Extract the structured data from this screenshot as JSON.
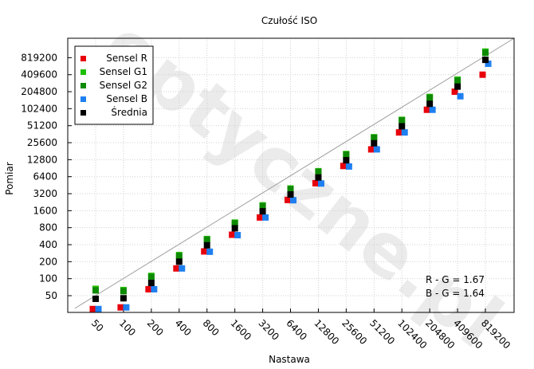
{
  "chart_data": {
    "type": "scatter",
    "title": "Czułość ISO",
    "xlabel": "Nastawa",
    "ylabel": "Pomiar",
    "scale": "log2",
    "grid": true,
    "legend_position": "top-left",
    "x_ticks": [
      "50",
      "100",
      "200",
      "400",
      "800",
      "1600",
      "3200",
      "6400",
      "12800",
      "25600",
      "51200",
      "102400",
      "204800",
      "409600",
      "819200"
    ],
    "y_ticks": [
      "50",
      "100",
      "200",
      "400",
      "800",
      "1600",
      "3200",
      "6400",
      "12800",
      "25600",
      "51200",
      "102400",
      "204800",
      "409600",
      "819200"
    ],
    "x": [
      50,
      100,
      200,
      400,
      800,
      1600,
      3200,
      6400,
      12800,
      25600,
      51200,
      102400,
      204800,
      409600,
      819200
    ],
    "series": [
      {
        "name": "Sensel R",
        "color": "#e8000b",
        "offset": -1,
        "values": [
          29,
          31,
          65,
          152,
          304,
          600,
          1213,
          2480,
          4900,
          9900,
          19500,
          38900,
          98000,
          204800,
          409600
        ]
      },
      {
        "name": "Sensel G1",
        "color": "#1fbe00",
        "offset": 0,
        "values": [
          66,
          63,
          112,
          262,
          504,
          985,
          1985,
          3950,
          8000,
          16100,
          32000,
          65000,
          165000,
          335000,
          1050000
        ]
      },
      {
        "name": "Sensel G2",
        "color": "#0e8a00",
        "offset": 0,
        "values": [
          62,
          60,
          107,
          252,
          490,
          955,
          1930,
          3850,
          7800,
          15700,
          31200,
          63500,
          160000,
          320000,
          1000000
        ]
      },
      {
        "name": "Sensel B",
        "color": "#1e7ff0",
        "offset": 1,
        "values": [
          29,
          31,
          65,
          152,
          300,
          590,
          1213,
          2450,
          4850,
          9700,
          19500,
          38900,
          98000,
          170000,
          640000
        ]
      },
      {
        "name": "Średnia",
        "color": "#000000",
        "offset": 0,
        "values": [
          44,
          45,
          84,
          200,
          390,
          780,
          1560,
          3100,
          6200,
          12500,
          25000,
          50000,
          125000,
          252000,
          750000
        ]
      }
    ],
    "annotations": [
      "R - G = 1.67",
      "B - G = 1.64"
    ],
    "watermark": "optyczne.pl"
  }
}
